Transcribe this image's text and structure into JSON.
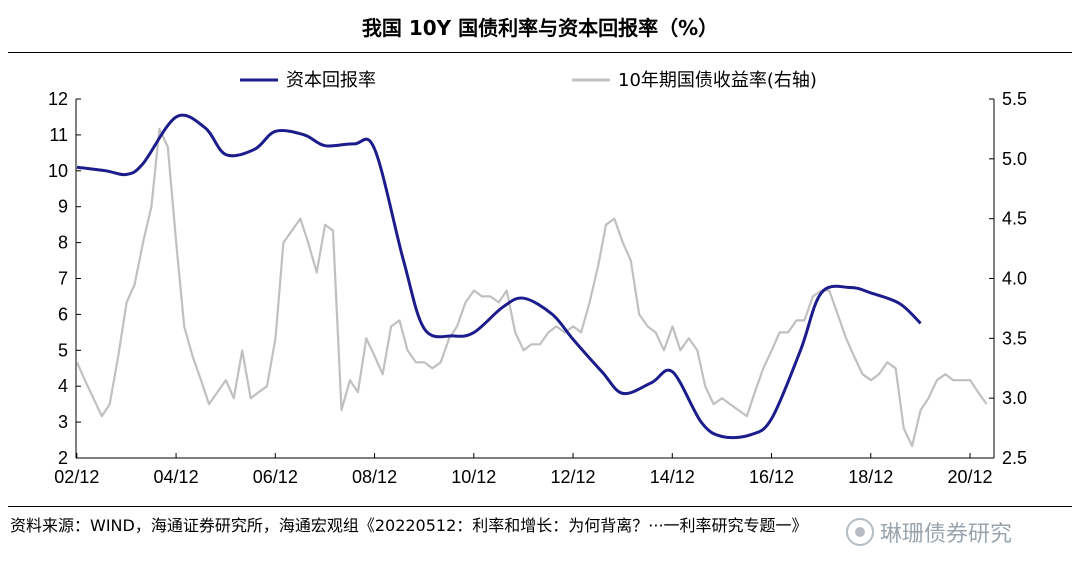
{
  "source_text": "资料来源：WIND，海通证券研究所，海通宏观组《20220512：利率和增长：为何背离？···一利率研究专题一》",
  "watermark_text": "琳珊债券研究",
  "colors": {
    "series1": "#1c1c8c",
    "series2": "#c0c0c0",
    "axis": "#000000"
  },
  "chart_data": {
    "type": "line",
    "title": "我国 10Y 国债利率与资本回报率（%）",
    "legend_position": "top",
    "grid": false,
    "x_ticks": [
      "02/12",
      "04/12",
      "06/12",
      "08/12",
      "10/12",
      "12/12",
      "14/12",
      "16/12",
      "18/12",
      "20/12"
    ],
    "xlim": [
      2002.9,
      2021.4
    ],
    "y_left": {
      "lim": [
        2,
        12
      ],
      "ticks": [
        "2",
        "3",
        "4",
        "5",
        "6",
        "7",
        "8",
        "9",
        "10",
        "11",
        "12"
      ]
    },
    "y_right": {
      "lim": [
        2.5,
        5.5
      ],
      "ticks": [
        "2.5",
        "3.0",
        "3.5",
        "4.0",
        "4.5",
        "5.0",
        "5.5"
      ]
    },
    "series": [
      {
        "name": "资本回报率",
        "axis": "left",
        "x": [
          2002.92,
          2003.5,
          2003.92,
          2004.25,
          2004.92,
          2005.5,
          2005.92,
          2006.5,
          2006.92,
          2007.5,
          2007.92,
          2008.5,
          2008.92,
          2009.5,
          2009.92,
          2010.5,
          2010.92,
          2011.5,
          2011.92,
          2012.5,
          2012.92,
          2013.5,
          2013.92,
          2014.5,
          2014.92,
          2015.5,
          2015.92,
          2016.5,
          2016.92,
          2017.5,
          2017.92,
          2018.5,
          2018.92,
          2019.5,
          2019.92
        ],
        "y": [
          10.1,
          10.0,
          9.9,
          10.2,
          11.5,
          11.2,
          10.45,
          10.6,
          11.1,
          11.0,
          10.7,
          10.75,
          10.6,
          7.5,
          5.6,
          5.4,
          5.5,
          6.2,
          6.45,
          6.0,
          5.3,
          4.4,
          3.8,
          4.1,
          4.4,
          3.0,
          2.6,
          2.65,
          3.1,
          5.0,
          6.6,
          6.75,
          6.6,
          6.3,
          5.75
        ]
      },
      {
        "name": "10年期国债收益率(右轴)",
        "axis": "right",
        "x": [
          2002.92,
          2003.08,
          2003.25,
          2003.42,
          2003.58,
          2003.75,
          2003.92,
          2004.08,
          2004.25,
          2004.42,
          2004.58,
          2004.75,
          2004.92,
          2005.08,
          2005.25,
          2005.42,
          2005.58,
          2005.75,
          2005.92,
          2006.08,
          2006.25,
          2006.42,
          2006.58,
          2006.75,
          2006.92,
          2007.08,
          2007.25,
          2007.42,
          2007.58,
          2007.75,
          2007.92,
          2008.08,
          2008.25,
          2008.42,
          2008.58,
          2008.75,
          2008.92,
          2009.08,
          2009.25,
          2009.42,
          2009.58,
          2009.75,
          2009.92,
          2010.08,
          2010.25,
          2010.42,
          2010.58,
          2010.75,
          2010.92,
          2011.08,
          2011.25,
          2011.42,
          2011.58,
          2011.75,
          2011.92,
          2012.08,
          2012.25,
          2012.42,
          2012.58,
          2012.75,
          2012.92,
          2013.08,
          2013.25,
          2013.42,
          2013.58,
          2013.75,
          2013.92,
          2014.08,
          2014.25,
          2014.42,
          2014.58,
          2014.75,
          2014.92,
          2015.08,
          2015.25,
          2015.42,
          2015.58,
          2015.75,
          2015.92,
          2016.08,
          2016.25,
          2016.42,
          2016.58,
          2016.75,
          2016.92,
          2017.08,
          2017.25,
          2017.42,
          2017.58,
          2017.75,
          2017.92,
          2018.08,
          2018.25,
          2018.42,
          2018.58,
          2018.75,
          2018.92,
          2019.08,
          2019.25,
          2019.42,
          2019.58,
          2019.75,
          2019.92,
          2020.08,
          2020.25,
          2020.42,
          2020.58,
          2020.75,
          2020.92,
          2021.08,
          2021.25
        ],
        "y": [
          3.3,
          3.15,
          3.0,
          2.85,
          2.95,
          3.35,
          3.8,
          3.95,
          4.3,
          4.6,
          5.25,
          5.1,
          4.3,
          3.6,
          3.35,
          3.15,
          2.95,
          3.05,
          3.15,
          3.0,
          3.4,
          3.0,
          3.05,
          3.1,
          3.5,
          4.3,
          4.4,
          4.5,
          4.3,
          4.05,
          4.45,
          4.4,
          2.9,
          3.15,
          3.05,
          3.5,
          3.35,
          3.2,
          3.6,
          3.65,
          3.4,
          3.3,
          3.3,
          3.25,
          3.3,
          3.5,
          3.6,
          3.8,
          3.9,
          3.85,
          3.85,
          3.8,
          3.9,
          3.55,
          3.4,
          3.45,
          3.45,
          3.55,
          3.6,
          3.55,
          3.6,
          3.55,
          3.8,
          4.1,
          4.45,
          4.5,
          4.3,
          4.15,
          3.7,
          3.6,
          3.55,
          3.4,
          3.6,
          3.4,
          3.5,
          3.4,
          3.1,
          2.95,
          3.0,
          2.95,
          2.9,
          2.85,
          3.05,
          3.25,
          3.4,
          3.55,
          3.55,
          3.65,
          3.65,
          3.85,
          3.9,
          3.9,
          3.7,
          3.5,
          3.35,
          3.2,
          3.15,
          3.2,
          3.3,
          3.25,
          2.75,
          2.6,
          2.9,
          3.0,
          3.15,
          3.2,
          3.15,
          3.15,
          3.15,
          3.05,
          2.95
        ]
      }
    ]
  }
}
